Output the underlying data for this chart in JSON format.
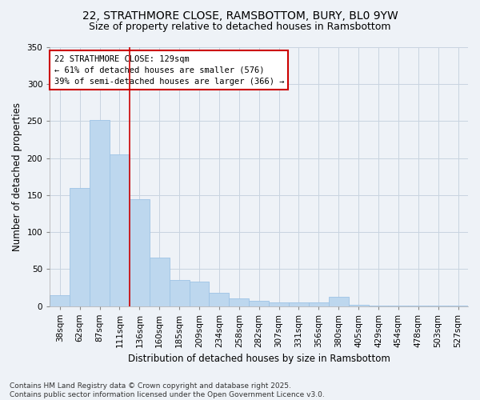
{
  "title_line1": "22, STRATHMORE CLOSE, RAMSBOTTOM, BURY, BL0 9YW",
  "title_line2": "Size of property relative to detached houses in Ramsbottom",
  "xlabel": "Distribution of detached houses by size in Ramsbottom",
  "ylabel": "Number of detached properties",
  "categories": [
    "38sqm",
    "62sqm",
    "87sqm",
    "111sqm",
    "136sqm",
    "160sqm",
    "185sqm",
    "209sqm",
    "234sqm",
    "258sqm",
    "282sqm",
    "307sqm",
    "331sqm",
    "356sqm",
    "380sqm",
    "405sqm",
    "429sqm",
    "454sqm",
    "478sqm",
    "503sqm",
    "527sqm"
  ],
  "values": [
    15,
    160,
    252,
    205,
    144,
    65,
    35,
    33,
    18,
    10,
    7,
    5,
    5,
    5,
    12,
    2,
    1,
    1,
    1,
    1,
    1
  ],
  "bar_color": "#bdd7ee",
  "bar_edge_color": "#9dc3e6",
  "grid_color": "#c8d4e0",
  "background_color": "#eef2f7",
  "vline_color": "#cc0000",
  "vline_pos": 3.5,
  "annotation_text": "22 STRATHMORE CLOSE: 129sqm\n← 61% of detached houses are smaller (576)\n39% of semi-detached houses are larger (366) →",
  "annotation_box_facecolor": "#ffffff",
  "annotation_box_edgecolor": "#cc0000",
  "ylim": [
    0,
    350
  ],
  "yticks": [
    0,
    50,
    100,
    150,
    200,
    250,
    300,
    350
  ],
  "footnote": "Contains HM Land Registry data © Crown copyright and database right 2025.\nContains public sector information licensed under the Open Government Licence v3.0.",
  "title_fontsize": 10,
  "subtitle_fontsize": 9,
  "axis_label_fontsize": 8.5,
  "tick_fontsize": 7.5,
  "annotation_fontsize": 7.5,
  "footnote_fontsize": 6.5
}
